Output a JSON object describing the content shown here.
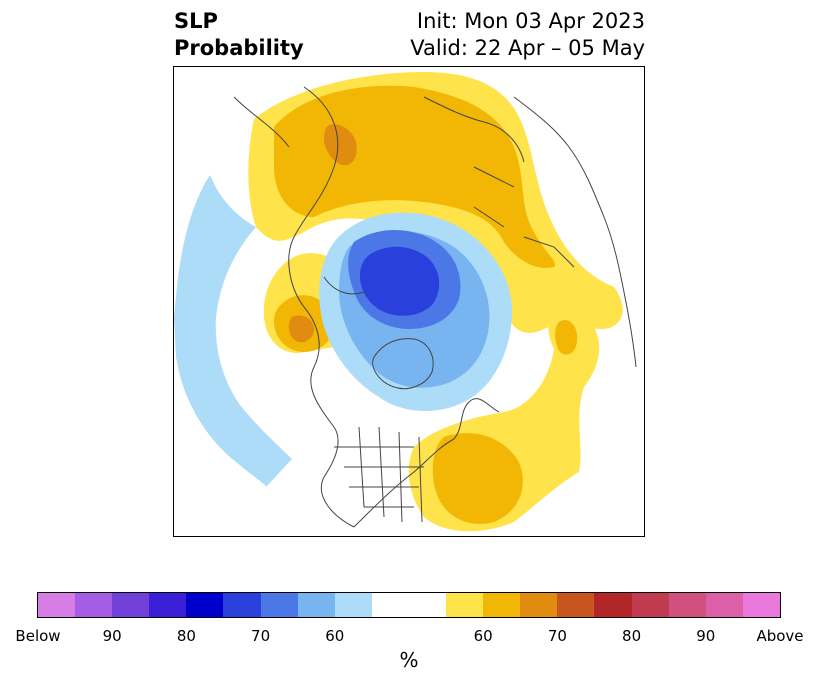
{
  "title": {
    "line1": "SLP",
    "line2": "Probability",
    "init": "Init: Mon 03 Apr 2023",
    "valid": "Valid: 22 Apr – 05 May"
  },
  "colorbar": {
    "unit": "%",
    "colors": [
      "#d67de6",
      "#a65de6",
      "#7040d8",
      "#3a1fd6",
      "#0000cc",
      "#2a40dd",
      "#4b78e6",
      "#78b4f0",
      "#acdcf8",
      "#ffffff",
      "#ffe34a",
      "#f2b705",
      "#e08c10",
      "#c8541e",
      "#b22628",
      "#c23a50",
      "#d0507e",
      "#dc60a8",
      "#e878dc"
    ],
    "labels": [
      "Below",
      "90",
      "80",
      "70",
      "60",
      "60",
      "70",
      "80",
      "90",
      "Above"
    ]
  },
  "map": {
    "projection": "north polar stereographic",
    "fill_colors": {
      "below_60": "#acdcf8",
      "below_70": "#78b4f0",
      "below_80": "#4b78e6",
      "below_90": "#2a40dd",
      "above_60": "#ffe34a",
      "above_70": "#f2b705",
      "above_80": "#e08c10"
    }
  }
}
